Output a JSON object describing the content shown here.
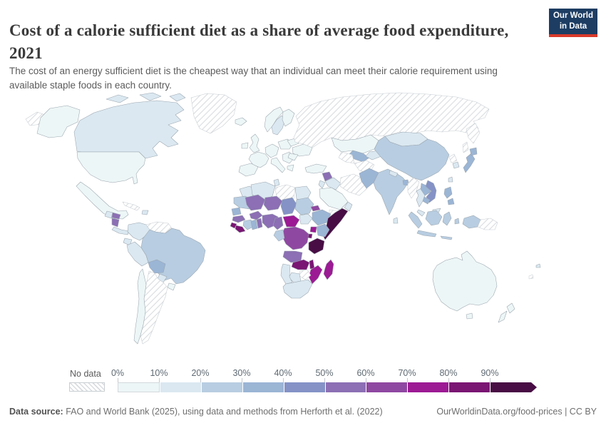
{
  "header": {
    "title": "Cost of a calorie sufficient diet as a share of average food expenditure, 2021",
    "subtitle": "The cost of an energy sufficient diet is the cheapest way that an individual can meet their calorie requirement using available staple foods in each country."
  },
  "logo": {
    "line1": "Our World",
    "line2": "in Data",
    "bg_color": "#1d3d63",
    "accent_color": "#d93a2b"
  },
  "legend": {
    "no_data_label": "No data",
    "ticks": [
      "0%",
      "10%",
      "20%",
      "30%",
      "40%",
      "50%",
      "60%",
      "70%",
      "80%",
      "90%"
    ]
  },
  "footer": {
    "source_label": "Data source:",
    "source_text": " FAO and World Bank (2025), using data and methods from Herforth et al. (2022)",
    "link": "OurWorldinData.org/food-prices",
    "separator": " | ",
    "license": "CC BY"
  },
  "chart_data": {
    "type": "choropleth_map",
    "title": "Cost of a calorie sufficient diet as a share of average food expenditure",
    "year": "2021",
    "unit": "share of average food expenditure (%)",
    "legend_position": "bottom",
    "bins": [
      {
        "range": "0-10%",
        "color": "#edf6f6"
      },
      {
        "range": "10-20%",
        "color": "#dbe8f1"
      },
      {
        "range": "20-30%",
        "color": "#b8cde1"
      },
      {
        "range": "30-40%",
        "color": "#9bb5d5"
      },
      {
        "range": "40-50%",
        "color": "#8492c6"
      },
      {
        "range": "50-60%",
        "color": "#8c6fb4"
      },
      {
        "range": "60-70%",
        "color": "#8f48a1"
      },
      {
        "range": "70-80%",
        "color": "#9c1a94"
      },
      {
        "range": "80-90%",
        "color": "#7a1573"
      },
      {
        "range": "90%+",
        "color": "#480d44"
      }
    ],
    "no_data": {
      "label": "No data",
      "pattern": "diagonal-hatch",
      "hatch_color": "#d9dcdf"
    },
    "countries": {
      "united-states": "0-10%",
      "canada": "10-20%",
      "greenland": "no-data",
      "mexico": "0-10%",
      "guatemala": "10-20%",
      "honduras": "50-60%",
      "nicaragua": "50-60%",
      "panama": "10-20%",
      "cuba": "no-data",
      "haiti": "10-20%",
      "colombia": "10-20%",
      "venezuela": "no-data",
      "guyana": "10-20%",
      "ecuador": "10-20%",
      "peru": "10-20%",
      "brazil": "20-30%",
      "bolivia": "30-40%",
      "paraguay": "10-20%",
      "uruguay": "0-10%",
      "argentina": "no-data",
      "chile": "0-10%",
      "iceland": "0-10%",
      "ireland": "0-10%",
      "united-kingdom": "0-10%",
      "norway": "0-10%",
      "sweden": "10-20%",
      "finland": "0-10%",
      "france": "0-10%",
      "spain": "0-10%",
      "germany": "0-10%",
      "italy": "0-10%",
      "poland": "0-10%",
      "balkans": "0-10%",
      "greece": "0-10%",
      "ukraine": "0-10%",
      "romania": "0-10%",
      "belarus": "0-10%",
      "russia": "no-data",
      "turkey": "0-10%",
      "syria": "50-60%",
      "iraq": "10-20%",
      "iran": "no-data",
      "saudi-arabia": "0-10%",
      "yemen": "no-data",
      "oman": "10-20%",
      "jordan": "10-20%",
      "kazakhstan": "0-10%",
      "uzbekistan": "30-40%",
      "turkmenistan": "no-data",
      "kyrgyzstan": "10-20%",
      "afghanistan": "no-data",
      "pakistan": "30-40%",
      "mongolia": "10-20%",
      "china": "20-30%",
      "india": "20-30%",
      "nepal": "10-20%",
      "bangladesh": "30-40%",
      "sri-lanka": "10-20%",
      "myanmar": "no-data",
      "thailand": "10-20%",
      "laos": "30-40%",
      "vietnam": "40-50%",
      "cambodia": "30-40%",
      "malaysia": "10-20%",
      "north-korea": "no-data",
      "south-korea": "10-20%",
      "japan": "30-40%",
      "taiwan": "10-20%",
      "philippines": "30-40%",
      "indonesia": "20-30%",
      "papua-new-guinea": "no-data",
      "australia": "0-10%",
      "new-zealand": "0-10%",
      "fiji": "10-20%",
      "new-caledonia": "no-data",
      "morocco": "10-20%",
      "algeria": "10-20%",
      "tunisia": "10-20%",
      "libya": "no-data",
      "egypt": "10-20%",
      "mauritania": "20-30%",
      "mali": "50-60%",
      "niger": "50-60%",
      "chad": "40-50%",
      "sudan": "20-30%",
      "senegal": "30-40%",
      "guinea": "50-60%",
      "sierra-leone": "80-90%",
      "liberia": "80-90%",
      "cote-divoire": "20-30%",
      "ghana": "30-40%",
      "togo": "50-60%",
      "burkina-faso": "50-60%",
      "nigeria": "50-60%",
      "cameroon": "50-60%",
      "central-african-republic": "70-80%",
      "south-sudan": "10-20%",
      "ethiopia": "30-40%",
      "eritrea": "60-70%",
      "somalia": "90%+",
      "kenya": "30-40%",
      "uganda": "70-80%",
      "burundi": "80-90%",
      "democratic-republic-of-congo": "60-70%",
      "gabon": "20-30%",
      "tanzania": "90%+",
      "angola": "50-60%",
      "zambia": "80-90%",
      "malawi": "80-90%",
      "mozambique": "70-80%",
      "zimbabwe": "no-data",
      "botswana": "10-20%",
      "namibia": "10-20%",
      "south-africa": "10-20%",
      "madagascar": "70-80%"
    }
  }
}
